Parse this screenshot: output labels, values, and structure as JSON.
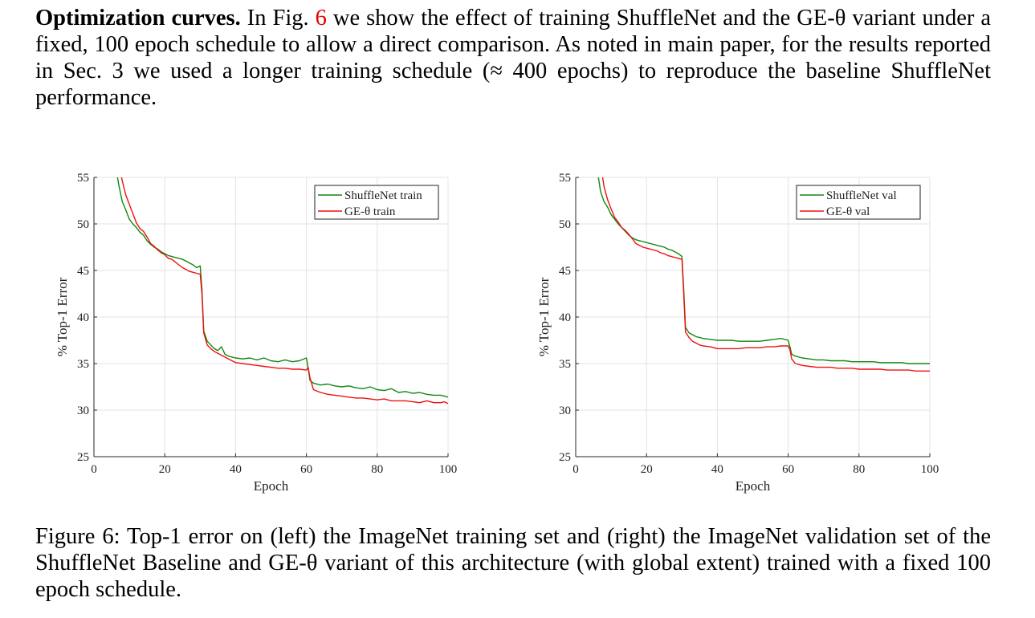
{
  "paragraph": {
    "lead": "Optimization curves.",
    "part1": " In Fig. ",
    "fig_ref": "6",
    "part2": " we show the effect of training ShuffleNet and the GE-θ variant under a fixed, 100 epoch schedule to allow a direct comparison. As noted in main paper, for the results reported in Sec. 3 we used a longer training schedule (≈ 400 epochs) to reproduce the baseline ShuffleNet performance."
  },
  "caption": "Figure 6: Top-1 error on (left) the ImageNet training set and (right) the ImageNet validation set of the ShuffleNet Baseline and GE-θ variant of this architecture (with global extent) trained with a fixed 100 epoch schedule.",
  "colors": {
    "shufflenet": "#118811",
    "ge": "#ee1111",
    "grid": "#e3e3e3",
    "axis": "#262626",
    "ref": "#e00000"
  },
  "chart_data": [
    {
      "type": "line",
      "xlabel": "Epoch",
      "ylabel": "% Top-1 Error",
      "xlim": [
        0,
        100
      ],
      "ylim": [
        25,
        55
      ],
      "xticks": [
        "0",
        "20",
        "40",
        "60",
        "80",
        "100"
      ],
      "yticks": [
        "25",
        "30",
        "35",
        "40",
        "45",
        "50",
        "55"
      ],
      "grid": true,
      "legend": "top-right",
      "series": [
        {
          "name": "ShuffleNet train",
          "color": "#118811",
          "x": [
            6,
            7,
            8,
            9,
            10,
            11,
            12,
            13,
            14,
            15,
            16,
            17,
            18,
            19,
            20,
            21,
            22,
            23,
            24,
            25,
            26,
            27,
            28,
            29,
            30,
            30.5,
            31,
            32,
            33,
            34,
            35,
            36,
            37,
            38,
            39,
            40,
            42,
            44,
            46,
            48,
            50,
            52,
            54,
            56,
            58,
            60,
            60.5,
            61,
            62,
            64,
            66,
            68,
            70,
            72,
            74,
            76,
            78,
            80,
            82,
            84,
            86,
            88,
            90,
            92,
            94,
            96,
            98,
            100
          ],
          "y": [
            56.5,
            54.2,
            52.4,
            51.5,
            50.5,
            50.0,
            49.6,
            49.1,
            48.8,
            48.2,
            47.8,
            47.5,
            47.3,
            47.0,
            46.8,
            46.6,
            46.5,
            46.4,
            46.3,
            46.2,
            46.0,
            45.8,
            45.6,
            45.3,
            45.5,
            43.0,
            38.5,
            37.4,
            37.0,
            36.6,
            36.4,
            36.8,
            36.0,
            35.8,
            35.7,
            35.6,
            35.5,
            35.6,
            35.4,
            35.6,
            35.3,
            35.2,
            35.4,
            35.2,
            35.3,
            35.6,
            34.5,
            33.2,
            32.9,
            32.7,
            32.8,
            32.6,
            32.5,
            32.6,
            32.4,
            32.3,
            32.5,
            32.2,
            32.1,
            32.3,
            31.9,
            32.0,
            31.8,
            31.9,
            31.7,
            31.6,
            31.6,
            31.4
          ]
        },
        {
          "name": "GE-θ train",
          "color": "#ee1111",
          "x": [
            7,
            8,
            9,
            10,
            11,
            12,
            13,
            14,
            15,
            16,
            17,
            18,
            19,
            20,
            21,
            22,
            23,
            24,
            25,
            26,
            27,
            28,
            29,
            30,
            30.5,
            31,
            32,
            33,
            34,
            35,
            36,
            37,
            38,
            39,
            40,
            42,
            44,
            46,
            48,
            50,
            52,
            54,
            56,
            58,
            60,
            60.5,
            61,
            62,
            64,
            66,
            68,
            70,
            72,
            74,
            76,
            78,
            80,
            82,
            84,
            86,
            88,
            90,
            92,
            94,
            96,
            98,
            99,
            100
          ],
          "y": [
            56.5,
            54.6,
            53.1,
            52.1,
            51.1,
            50.1,
            49.5,
            49.2,
            48.6,
            47.9,
            47.6,
            47.2,
            46.9,
            46.7,
            46.3,
            46.2,
            45.9,
            45.6,
            45.3,
            45.1,
            44.9,
            44.8,
            44.7,
            44.6,
            42.5,
            38.3,
            37.0,
            36.6,
            36.3,
            36.1,
            35.9,
            35.7,
            35.5,
            35.3,
            35.1,
            35.0,
            34.9,
            34.8,
            34.7,
            34.6,
            34.5,
            34.5,
            34.4,
            34.4,
            34.3,
            34.6,
            33.5,
            32.2,
            31.9,
            31.7,
            31.6,
            31.5,
            31.4,
            31.3,
            31.3,
            31.2,
            31.1,
            31.2,
            31.0,
            31.0,
            31.0,
            30.9,
            30.8,
            31.0,
            30.8,
            30.8,
            30.9,
            30.7
          ]
        }
      ]
    },
    {
      "type": "line",
      "xlabel": "Epoch",
      "ylabel": "% Top-1 Error",
      "xlim": [
        0,
        100
      ],
      "ylim": [
        25,
        55
      ],
      "xticks": [
        "0",
        "20",
        "40",
        "60",
        "80",
        "100"
      ],
      "yticks": [
        "25",
        "30",
        "35",
        "40",
        "45",
        "50",
        "55"
      ],
      "grid": true,
      "legend": "top-right",
      "series": [
        {
          "name": "ShuffleNet val",
          "color": "#118811",
          "x": [
            6,
            7,
            8,
            9,
            10,
            11,
            12,
            13,
            14,
            15,
            16,
            17,
            18,
            19,
            20,
            21,
            22,
            23,
            24,
            25,
            26,
            27,
            28,
            29,
            30,
            30.5,
            31,
            32,
            33,
            34,
            35,
            36,
            38,
            40,
            42,
            44,
            46,
            48,
            50,
            52,
            54,
            56,
            58,
            60,
            60.5,
            61,
            62,
            64,
            66,
            68,
            70,
            72,
            74,
            76,
            78,
            80,
            82,
            84,
            86,
            88,
            90,
            92,
            94,
            96,
            98,
            100
          ],
          "y": [
            56.0,
            53.5,
            52.4,
            51.8,
            51.0,
            50.5,
            50.0,
            49.6,
            49.2,
            48.8,
            48.5,
            48.3,
            48.2,
            48.1,
            48.0,
            47.9,
            47.8,
            47.7,
            47.6,
            47.5,
            47.3,
            47.2,
            47.0,
            46.8,
            46.5,
            43.0,
            38.9,
            38.3,
            38.1,
            37.9,
            37.8,
            37.7,
            37.6,
            37.5,
            37.5,
            37.5,
            37.4,
            37.4,
            37.4,
            37.4,
            37.5,
            37.6,
            37.7,
            37.5,
            36.8,
            36.0,
            35.8,
            35.6,
            35.5,
            35.4,
            35.4,
            35.3,
            35.3,
            35.3,
            35.2,
            35.2,
            35.2,
            35.2,
            35.1,
            35.1,
            35.1,
            35.1,
            35.0,
            35.0,
            35.0,
            35.0
          ]
        },
        {
          "name": "GE-θ val",
          "color": "#ee1111",
          "x": [
            7,
            8,
            9,
            10,
            11,
            12,
            13,
            14,
            15,
            16,
            17,
            18,
            19,
            20,
            21,
            22,
            23,
            24,
            25,
            26,
            27,
            28,
            29,
            30,
            30.5,
            31,
            32,
            33,
            34,
            35,
            36,
            38,
            40,
            42,
            44,
            46,
            48,
            50,
            52,
            54,
            56,
            58,
            60,
            60.5,
            61,
            62,
            64,
            66,
            68,
            70,
            72,
            74,
            76,
            78,
            80,
            82,
            84,
            86,
            88,
            90,
            92,
            94,
            96,
            98,
            100
          ],
          "y": [
            56.5,
            54.0,
            52.6,
            51.6,
            50.7,
            50.2,
            49.6,
            49.3,
            48.9,
            48.4,
            47.9,
            47.7,
            47.5,
            47.4,
            47.3,
            47.2,
            47.1,
            46.9,
            46.8,
            46.6,
            46.5,
            46.4,
            46.3,
            46.2,
            42.5,
            38.4,
            37.8,
            37.4,
            37.2,
            37.0,
            36.9,
            36.8,
            36.6,
            36.6,
            36.6,
            36.6,
            36.7,
            36.7,
            36.7,
            36.8,
            36.8,
            36.9,
            36.9,
            36.5,
            35.5,
            35.0,
            34.8,
            34.7,
            34.6,
            34.6,
            34.6,
            34.5,
            34.5,
            34.5,
            34.4,
            34.4,
            34.4,
            34.4,
            34.3,
            34.3,
            34.3,
            34.3,
            34.2,
            34.2,
            34.2
          ]
        }
      ]
    }
  ]
}
